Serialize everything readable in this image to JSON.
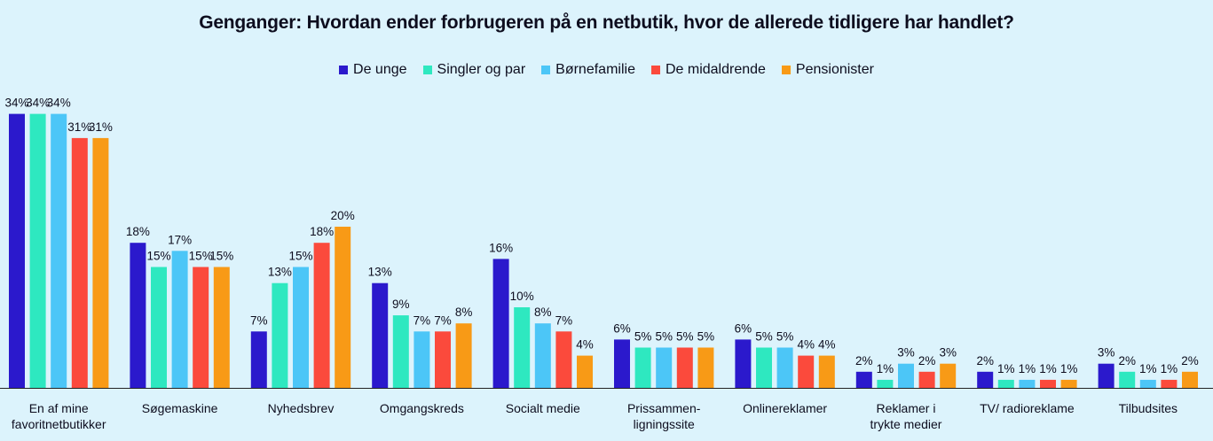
{
  "chart_data": {
    "type": "bar",
    "title": "Genganger: Hvordan ender forbrugeren på en netbutik, hvor de allerede tidligere har handlet?",
    "categories": [
      "En af mine favoritnetbutikker",
      "Søgemaskine",
      "Nyhedsbrev",
      "Omgangskreds",
      "Socialt medie",
      "Prissammen-ligningssite",
      "Onlinereklamer",
      "Reklamer i trykte medier",
      "TV/ radioreklame",
      "Tilbudsites"
    ],
    "category_lines": [
      [
        "En af mine",
        "favoritnetbutikker"
      ],
      [
        "Søgemaskine"
      ],
      [
        "Nyhedsbrev"
      ],
      [
        "Omgangskreds"
      ],
      [
        "Socialt medie"
      ],
      [
        "Prissammen-",
        "ligningssite"
      ],
      [
        "Onlinereklamer"
      ],
      [
        "Reklamer i",
        "trykte medier"
      ],
      [
        "TV/ radioreklame"
      ],
      [
        "Tilbudsites"
      ]
    ],
    "series": [
      {
        "name": "De unge",
        "color": "#2b19cc",
        "values": [
          34,
          18,
          7,
          13,
          16,
          6,
          6,
          2,
          2,
          3
        ]
      },
      {
        "name": "Singler og par",
        "color": "#2ee8c0",
        "values": [
          34,
          15,
          13,
          9,
          10,
          5,
          5,
          1,
          1,
          2
        ]
      },
      {
        "name": "Børnefamilie",
        "color": "#4cc6f7",
        "values": [
          34,
          17,
          15,
          7,
          8,
          5,
          5,
          3,
          1,
          1
        ]
      },
      {
        "name": "De midaldrende",
        "color": "#fb4a3c",
        "values": [
          31,
          15,
          18,
          7,
          7,
          5,
          4,
          2,
          1,
          1
        ]
      },
      {
        "name": "Pensionister",
        "color": "#f89a16",
        "values": [
          31,
          15,
          20,
          8,
          4,
          5,
          4,
          3,
          1,
          2
        ]
      }
    ],
    "value_suffix": "%",
    "ylim": [
      0,
      34
    ],
    "grid": false,
    "legend_position": "top-center"
  }
}
